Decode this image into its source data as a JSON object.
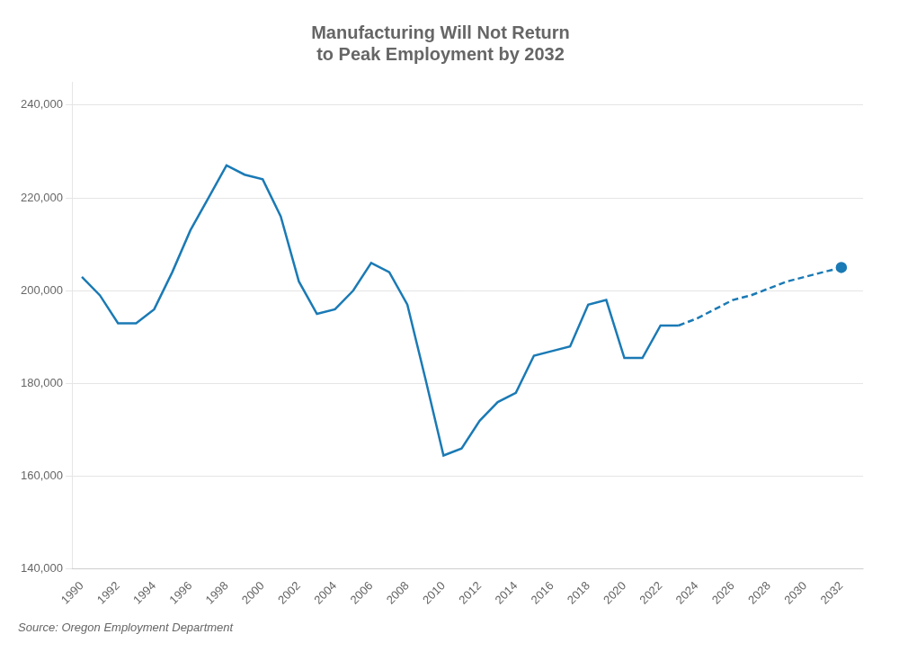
{
  "chart_data": {
    "type": "line",
    "title": "Manufacturing Will Not Return\nto Peak Employment by 2032",
    "annotations": [
      "Source: Oregon Employment Department"
    ],
    "series": [
      {
        "color": "#1a7ab5",
        "line_style": "solid",
        "x": [
          1990,
          1991,
          1992,
          1993,
          1994,
          1995,
          1996,
          1997,
          1998,
          1999,
          2000,
          2001,
          2002,
          2003,
          2004,
          2005,
          2006,
          2007,
          2008,
          2009,
          2010,
          2011,
          2012,
          2013,
          2014,
          2015,
          2016,
          2017,
          2018,
          2019,
          2020,
          2021,
          2022,
          2023
        ],
        "values": [
          203000,
          199000,
          193000,
          193000,
          196000,
          204000,
          213000,
          220000,
          227000,
          225000,
          224000,
          216000,
          202000,
          195000,
          196000,
          200000,
          206000,
          204000,
          197000,
          181000,
          164500,
          166000,
          172000,
          176000,
          178000,
          186000,
          187000,
          188000,
          197000,
          198000,
          185500,
          185500,
          192500,
          192500
        ]
      },
      {
        "color": "#1a7ab5",
        "line_style": "dashed",
        "x": [
          2023,
          2024,
          2025,
          2026,
          2027,
          2028,
          2029,
          2030,
          2031,
          2032
        ],
        "values": [
          192500,
          194000,
          196000,
          198000,
          199000,
          200500,
          202000,
          203000,
          204000,
          205000
        ]
      },
      {
        "type": "scatter",
        "color": "#1a7ab5",
        "marker": "circle",
        "x": [
          2032
        ],
        "values": [
          205000
        ]
      }
    ],
    "xlim": [
      1989.5,
      2033.2
    ],
    "xticks": [
      1990,
      1992,
      1994,
      1996,
      1998,
      2000,
      2002,
      2004,
      2006,
      2008,
      2010,
      2012,
      2014,
      2016,
      2018,
      2020,
      2022,
      2024,
      2026,
      2028,
      2030,
      2032
    ],
    "ylim": [
      140000,
      245000
    ],
    "yticks": [
      {
        "value": 140000,
        "label": "140,000"
      },
      {
        "value": 160000,
        "label": "160,000"
      },
      {
        "value": 180000,
        "label": "180,000"
      },
      {
        "value": 200000,
        "label": "200,000"
      },
      {
        "value": 220000,
        "label": "220,000"
      },
      {
        "value": 240000,
        "label": "240,000"
      }
    ],
    "grid": "y"
  }
}
